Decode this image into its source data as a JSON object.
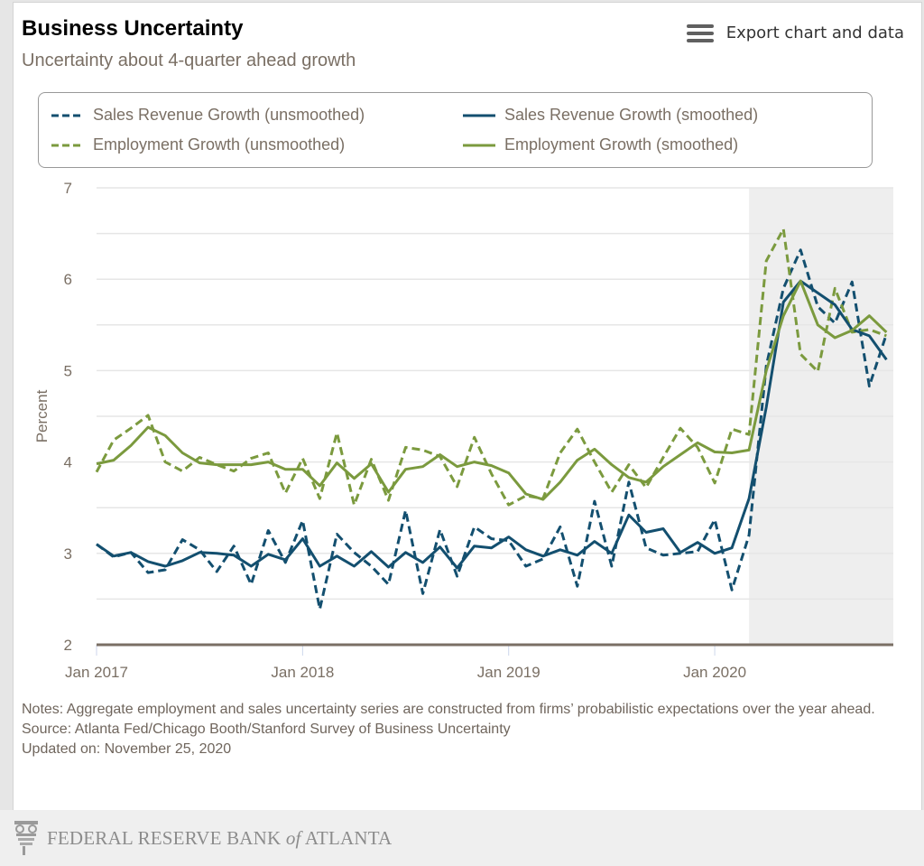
{
  "header": {
    "title": "Business Uncertainty",
    "subtitle": "Uncertainty about 4-quarter ahead growth",
    "export_label": "Export chart and data"
  },
  "colors": {
    "sales": "#134f6f",
    "employment": "#7b9a3e",
    "shade": "#eeeeee",
    "axis": "#7a6f64"
  },
  "chart_data": {
    "type": "line",
    "title": "Business Uncertainty",
    "subtitle": "Uncertainty about 4-quarter ahead growth",
    "xlabel": "",
    "ylabel": "Percent",
    "ylim": [
      2,
      7
    ],
    "yticks": [
      "2",
      "3",
      "4",
      "5",
      "6",
      "7"
    ],
    "grid": true,
    "legend_position": "top",
    "x_start": "Jan 2017",
    "x_frequency": "monthly",
    "xticks": [
      {
        "label": "Jan 2017",
        "index": 0
      },
      {
        "label": "Jan 2018",
        "index": 12
      },
      {
        "label": "Jan 2019",
        "index": 24
      },
      {
        "label": "Jan 2020",
        "index": 36
      }
    ],
    "shaded_region_start_index": 38,
    "series": [
      {
        "name": "Sales Revenue Growth (unsmoothed)",
        "style": "dashed",
        "color_key": "sales",
        "values": [
          3.1,
          2.96,
          3.01,
          2.79,
          2.82,
          3.15,
          3.04,
          2.8,
          3.08,
          2.66,
          3.25,
          2.9,
          3.36,
          2.39,
          3.21,
          3.01,
          2.86,
          2.66,
          3.47,
          2.56,
          3.26,
          2.75,
          3.29,
          3.16,
          3.14,
          2.86,
          2.94,
          3.29,
          2.64,
          3.57,
          2.86,
          3.78,
          3.06,
          2.98,
          3.0,
          3.02,
          3.37,
          2.6,
          3.2,
          5.05,
          5.9,
          6.32,
          5.7,
          5.52,
          5.97,
          4.83,
          5.4
        ]
      },
      {
        "name": "Sales Revenue Growth (smoothed)",
        "style": "solid",
        "color_key": "sales",
        "values": [
          3.1,
          2.97,
          3.01,
          2.91,
          2.86,
          2.92,
          3.01,
          3.0,
          2.98,
          2.86,
          2.99,
          2.93,
          3.16,
          2.86,
          2.97,
          2.86,
          3.02,
          2.85,
          3.01,
          2.9,
          3.07,
          2.84,
          3.08,
          3.06,
          3.18,
          3.04,
          2.97,
          3.04,
          2.98,
          3.13,
          3.0,
          3.42,
          3.23,
          3.27,
          3.01,
          3.12,
          3.0,
          3.06,
          3.6,
          4.6,
          5.75,
          5.98,
          5.85,
          5.72,
          5.45,
          5.38,
          5.12
        ]
      },
      {
        "name": "Employment Growth (unsmoothed)",
        "style": "dashed",
        "color_key": "employment",
        "values": [
          3.89,
          4.24,
          4.37,
          4.51,
          4.0,
          3.9,
          4.05,
          3.97,
          3.9,
          4.04,
          4.1,
          3.66,
          4.04,
          3.6,
          4.32,
          3.53,
          4.03,
          3.58,
          4.16,
          4.13,
          4.06,
          3.73,
          4.27,
          3.87,
          3.53,
          3.63,
          3.6,
          4.1,
          4.36,
          4.0,
          3.67,
          3.97,
          3.72,
          4.05,
          4.37,
          4.16,
          3.77,
          4.36,
          4.3,
          6.2,
          6.55,
          5.18,
          4.99,
          5.9,
          5.42,
          5.45,
          5.38
        ]
      },
      {
        "name": "Employment Growth (smoothed)",
        "style": "solid",
        "color_key": "employment",
        "values": [
          3.98,
          4.02,
          4.18,
          4.38,
          4.29,
          4.1,
          3.99,
          3.97,
          3.97,
          3.97,
          4.0,
          3.92,
          3.92,
          3.74,
          3.99,
          3.82,
          3.98,
          3.67,
          3.92,
          3.95,
          4.08,
          3.95,
          4.0,
          3.96,
          3.88,
          3.65,
          3.59,
          3.78,
          4.02,
          4.14,
          3.97,
          3.83,
          3.78,
          3.95,
          4.08,
          4.21,
          4.11,
          4.1,
          4.13,
          5.0,
          5.6,
          5.98,
          5.5,
          5.36,
          5.44,
          5.6,
          5.42
        ]
      }
    ]
  },
  "notes": {
    "notes_text": "Notes: Aggregate employment and sales uncertainty series are constructed from firms’ probabilistic expectations over the year ahead.",
    "source_text": "Source: Atlanta Fed/Chicago Booth/Stanford Survey of Business Uncertainty",
    "updated_text": "Updated on: November 25, 2020"
  },
  "footer": {
    "org_part1": "FEDERAL RESERVE BANK ",
    "org_of": "of",
    "org_part2": " ATLANTA"
  }
}
